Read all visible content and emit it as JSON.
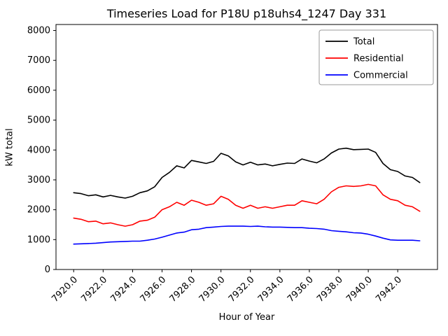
{
  "title": "Timeseries Load for P18U p18uhs4_1247  Day 331",
  "chart_data": {
    "type": "line",
    "title": "Timeseries Load for P18U p18uhs4_1247  Day 331",
    "xlabel": "Hour of Year",
    "ylabel": "kW total",
    "xlim": [
      7918.8,
      7944.7
    ],
    "ylim": [
      0,
      8200
    ],
    "grid": false,
    "legend_position": "upper right",
    "x_ticks": [
      7920,
      7922,
      7924,
      7926,
      7928,
      7930,
      7932,
      7934,
      7936,
      7938,
      7940,
      7942
    ],
    "x_tick_labels": [
      "7920.0",
      "7922.0",
      "7924.0",
      "7926.0",
      "7928.0",
      "7930.0",
      "7932.0",
      "7934.0",
      "7936.0",
      "7938.0",
      "7940.0",
      "7942.0"
    ],
    "y_ticks": [
      0,
      1000,
      2000,
      3000,
      4000,
      5000,
      6000,
      7000,
      8000
    ],
    "y_tick_labels": [
      "0",
      "1000",
      "2000",
      "3000",
      "4000",
      "5000",
      "6000",
      "7000",
      "8000"
    ],
    "x": [
      7920.0,
      7920.5,
      7921.0,
      7921.5,
      7922.0,
      7922.5,
      7923.0,
      7923.5,
      7924.0,
      7924.5,
      7925.0,
      7925.5,
      7926.0,
      7926.5,
      7927.0,
      7927.5,
      7928.0,
      7928.5,
      7929.0,
      7929.5,
      7930.0,
      7930.5,
      7931.0,
      7931.5,
      7932.0,
      7932.5,
      7933.0,
      7933.5,
      7934.0,
      7934.5,
      7935.0,
      7935.5,
      7936.0,
      7936.5,
      7937.0,
      7937.5,
      7938.0,
      7938.5,
      7939.0,
      7939.5,
      7940.0,
      7940.5,
      7941.0,
      7941.5,
      7942.0,
      7942.5,
      7943.0,
      7943.5
    ],
    "series": [
      {
        "name": "Total",
        "color": "#000000",
        "values": [
          2570,
          2540,
          2470,
          2500,
          2430,
          2480,
          2430,
          2390,
          2450,
          2570,
          2630,
          2770,
          3080,
          3250,
          3470,
          3400,
          3650,
          3600,
          3550,
          3620,
          3890,
          3800,
          3600,
          3500,
          3590,
          3500,
          3530,
          3470,
          3520,
          3560,
          3550,
          3700,
          3630,
          3570,
          3700,
          3900,
          4030,
          4060,
          4010,
          4020,
          4030,
          3920,
          3550,
          3340,
          3280,
          3130,
          3080,
          2910
        ]
      },
      {
        "name": "Residential",
        "color": "#ff0000",
        "values": [
          1720,
          1680,
          1600,
          1620,
          1530,
          1560,
          1500,
          1450,
          1500,
          1620,
          1650,
          1750,
          2000,
          2100,
          2250,
          2150,
          2320,
          2250,
          2150,
          2200,
          2450,
          2350,
          2150,
          2050,
          2150,
          2050,
          2100,
          2050,
          2100,
          2150,
          2150,
          2300,
          2250,
          2200,
          2350,
          2600,
          2750,
          2800,
          2780,
          2800,
          2850,
          2800,
          2500,
          2350,
          2300,
          2150,
          2100,
          1950
        ]
      },
      {
        "name": "Commercial",
        "color": "#0000ff",
        "values": [
          850,
          860,
          870,
          880,
          900,
          920,
          930,
          940,
          950,
          950,
          980,
          1020,
          1080,
          1150,
          1220,
          1250,
          1330,
          1350,
          1400,
          1420,
          1440,
          1450,
          1450,
          1450,
          1440,
          1450,
          1430,
          1420,
          1420,
          1410,
          1400,
          1400,
          1380,
          1370,
          1350,
          1300,
          1280,
          1260,
          1230,
          1220,
          1180,
          1120,
          1050,
          990,
          980,
          980,
          980,
          960
        ]
      }
    ]
  }
}
